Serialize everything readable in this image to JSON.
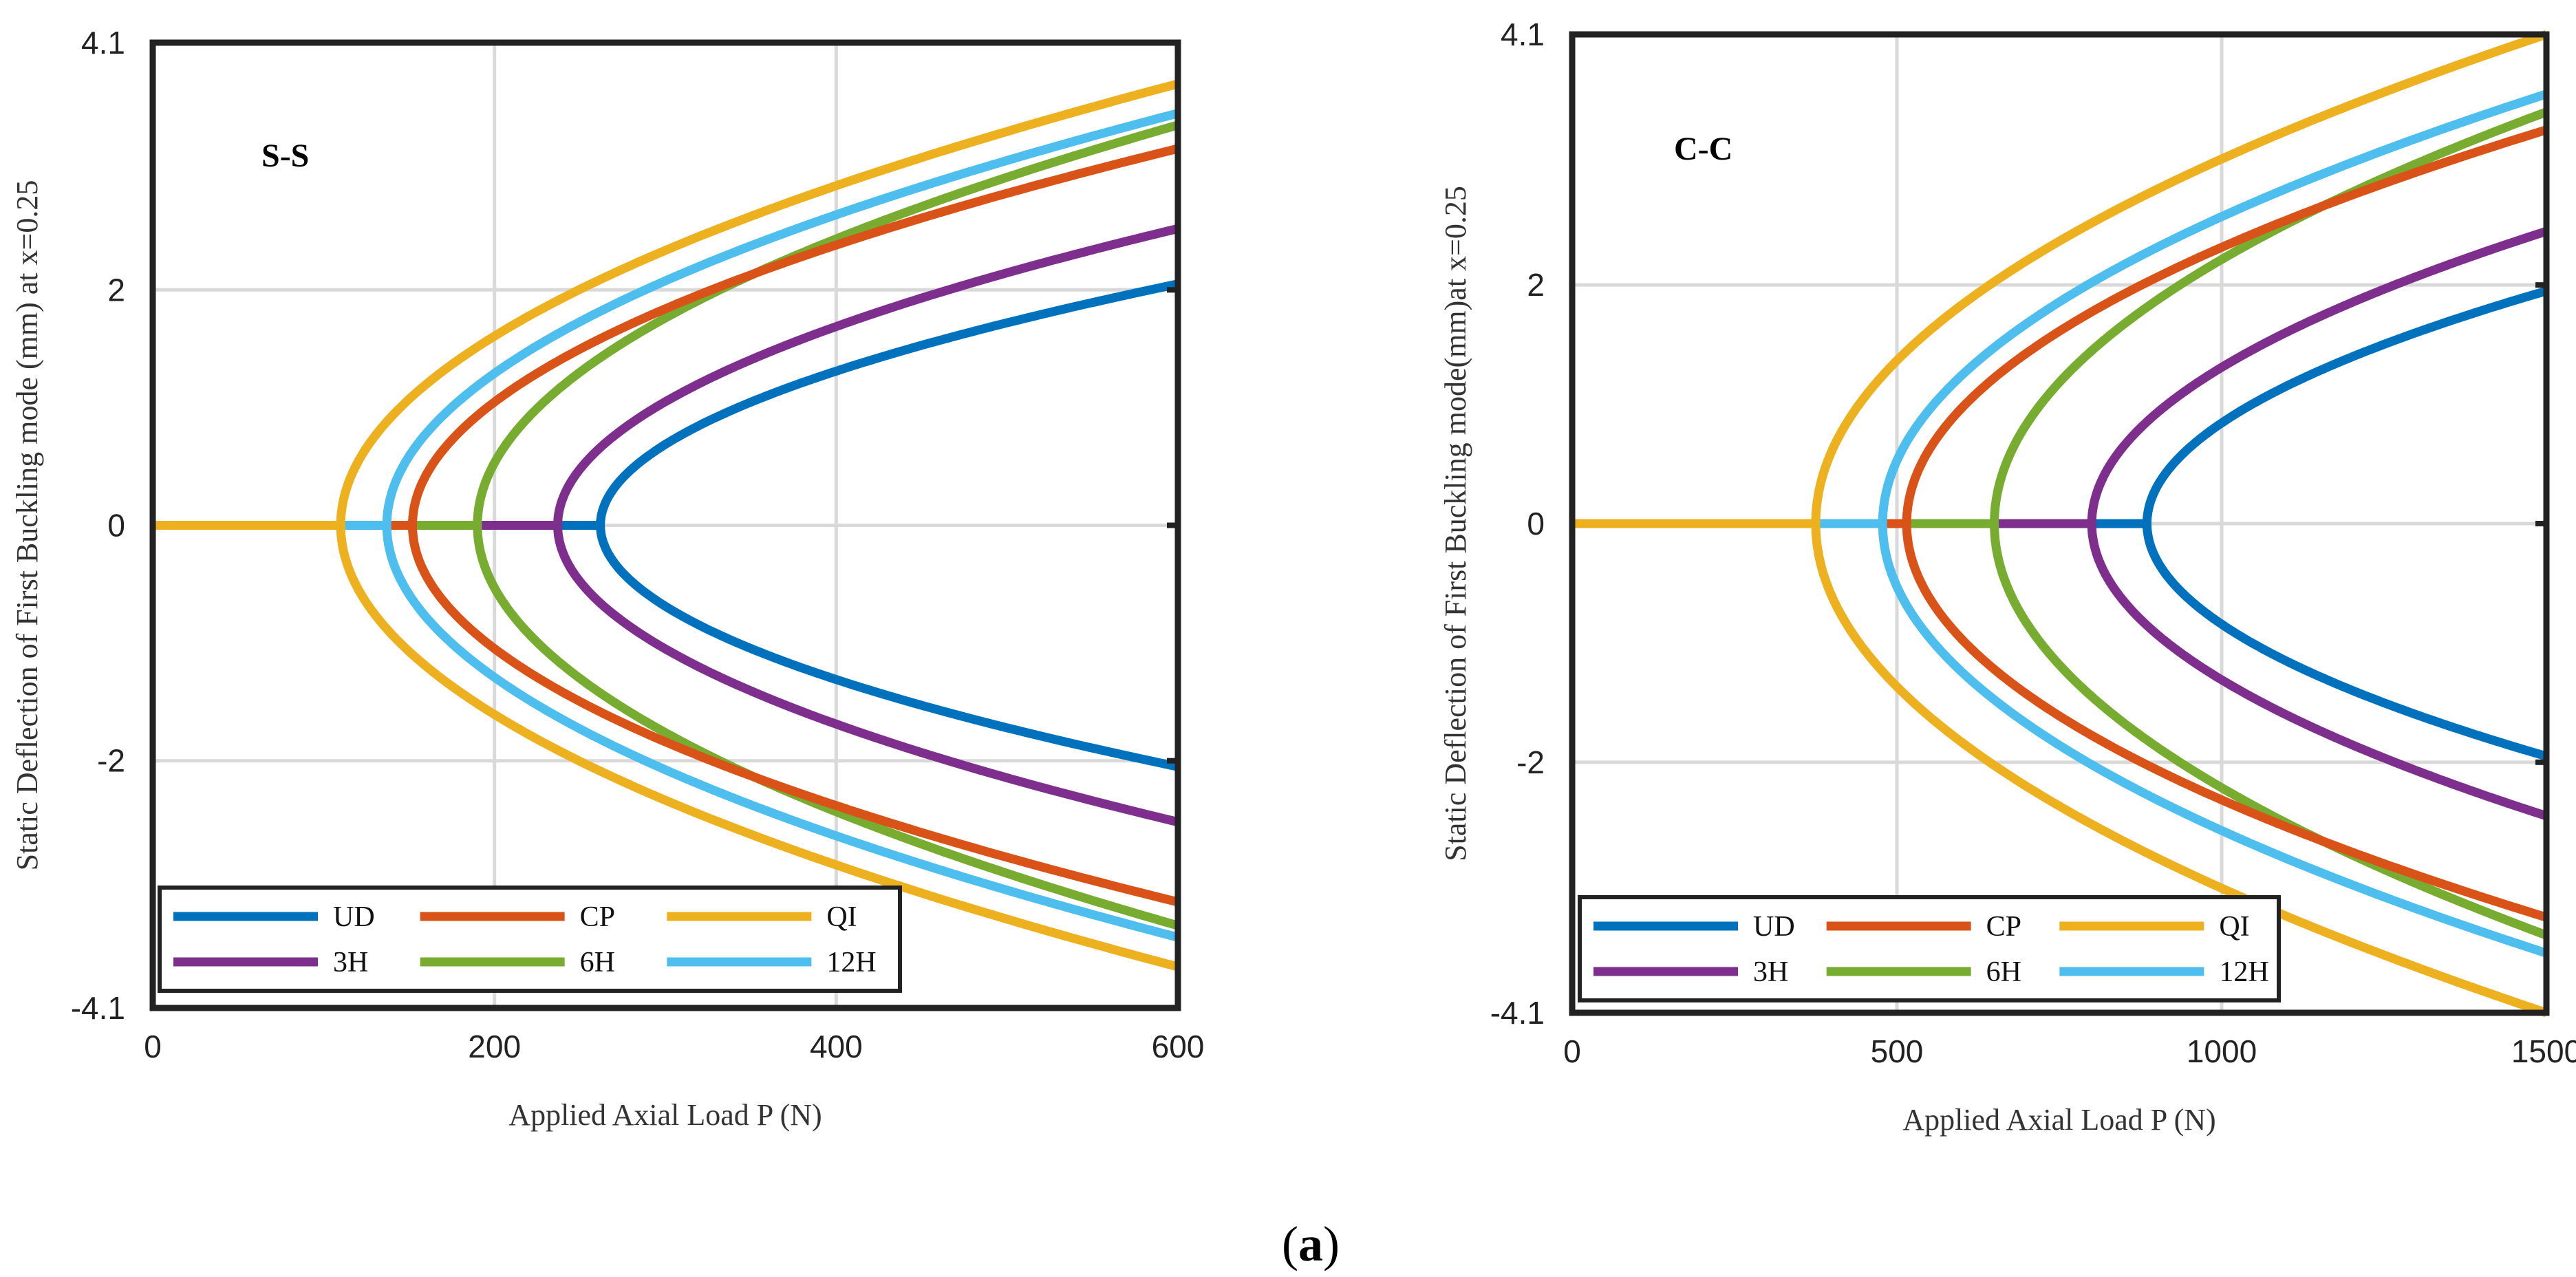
{
  "caption": {
    "open": "(",
    "letter": "a",
    "close": ")"
  },
  "chart_data": [
    {
      "type": "line",
      "panel_label": "S-S",
      "xlabel": "Applied Axial Load P (N)",
      "ylabel": "Static Deflection of First Buckling mode (mm) at x=0.25",
      "xlim": [
        0,
        600
      ],
      "ylim": [
        -4.1,
        4.1
      ],
      "xticks": [
        0,
        200,
        400,
        600
      ],
      "xtick_labels": [
        "0",
        "200",
        "400",
        "600"
      ],
      "yticks": [
        -4.1,
        -2,
        0,
        2,
        4.1
      ],
      "ytick_labels": [
        "-4.1",
        "-2",
        "0",
        "2",
        "4.1"
      ],
      "grid": true,
      "legend_position": "bottom-left",
      "series": [
        {
          "name": "UD",
          "color": "#0072BD",
          "critical_load": 262,
          "deflection_at_max": 2.05
        },
        {
          "name": "CP",
          "color": "#D95319",
          "critical_load": 152,
          "deflection_at_max": 3.2
        },
        {
          "name": "QI",
          "color": "#EDB120",
          "critical_load": 110,
          "deflection_at_max": 3.75
        },
        {
          "name": "3H",
          "color": "#7E2F8E",
          "critical_load": 237,
          "deflection_at_max": 2.52
        },
        {
          "name": "6H",
          "color": "#77AC30",
          "critical_load": 190,
          "deflection_at_max": 3.4
        },
        {
          "name": "12H",
          "color": "#4DBEEE",
          "critical_load": 137,
          "deflection_at_max": 3.5
        }
      ]
    },
    {
      "type": "line",
      "panel_label": "C-C",
      "xlabel": "Applied Axial Load P (N)",
      "ylabel": "Static Deflection of First Buckling mode(mm)at x=0.25",
      "xlim": [
        0,
        1500
      ],
      "ylim": [
        -4.1,
        4.1
      ],
      "xticks": [
        0,
        500,
        1000,
        1500
      ],
      "xtick_labels": [
        "0",
        "500",
        "1000",
        "1500"
      ],
      "yticks": [
        -4.1,
        -2,
        0,
        2,
        4.1
      ],
      "ytick_labels": [
        "-4.1",
        "-2",
        "0",
        "2",
        "4.1"
      ],
      "grid": true,
      "legend_position": "bottom-left",
      "series": [
        {
          "name": "UD",
          "color": "#0072BD",
          "critical_load": 885,
          "deflection_at_max": 1.95
        },
        {
          "name": "CP",
          "color": "#D95319",
          "critical_load": 515,
          "deflection_at_max": 3.3
        },
        {
          "name": "QI",
          "color": "#EDB120",
          "critical_load": 375,
          "deflection_at_max": 4.1
        },
        {
          "name": "3H",
          "color": "#7E2F8E",
          "critical_load": 800,
          "deflection_at_max": 2.45
        },
        {
          "name": "6H",
          "color": "#77AC30",
          "critical_load": 650,
          "deflection_at_max": 3.45
        },
        {
          "name": "12H",
          "color": "#4DBEEE",
          "critical_load": 478,
          "deflection_at_max": 3.6
        }
      ]
    }
  ]
}
